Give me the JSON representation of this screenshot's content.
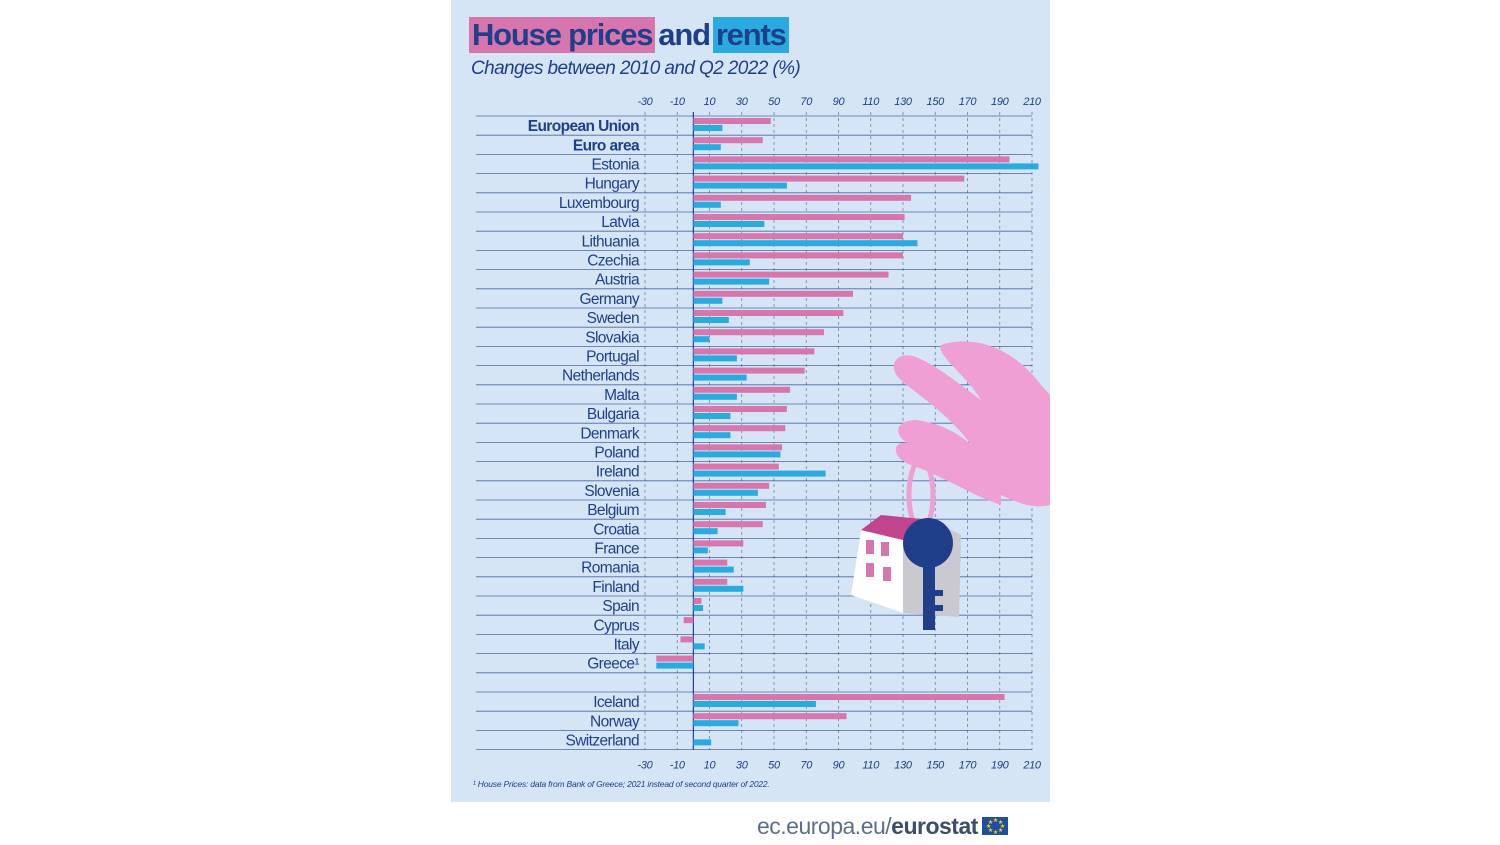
{
  "title": {
    "part1": "House prices",
    "part2": "and",
    "part3": "rents"
  },
  "subtitle": "Changes between 2010 and Q2 2022 (%)",
  "footnote": "¹ House Prices: data from Bank of Greece; 2021 instead of second quarter of 2022.",
  "footer": {
    "site": "ec.europa.eu/",
    "brand": "eurostat"
  },
  "colors": {
    "house_prices": "#d676ad",
    "rents": "#29abe2",
    "text": "#1f3f8b",
    "background": "#d5e5f5"
  },
  "chart_data": {
    "type": "bar",
    "orientation": "horizontal",
    "x_ticks": [
      -30,
      -10,
      10,
      30,
      50,
      70,
      90,
      110,
      130,
      150,
      170,
      190,
      210
    ],
    "xlim": [
      -30,
      210
    ],
    "grid": true,
    "categories": [
      "European Union",
      "Euro area",
      "Estonia",
      "Hungary",
      "Luxembourg",
      "Latvia",
      "Lithuania",
      "Czechia",
      "Austria",
      "Germany",
      "Sweden",
      "Slovakia",
      "Portugal",
      "Netherlands",
      "Malta",
      "Bulgaria",
      "Denmark",
      "Poland",
      "Ireland",
      "Slovenia",
      "Belgium",
      "Croatia",
      "France",
      "Romania",
      "Finland",
      "Spain",
      "Cyprus",
      "Italy",
      "Greece¹",
      "Iceland",
      "Norway",
      "Switzerland"
    ],
    "bold_categories": [
      "European Union",
      "Euro area"
    ],
    "series": [
      {
        "key": "house_prices",
        "values": [
          48,
          43,
          196,
          168,
          135,
          131,
          130,
          130,
          121,
          99,
          93,
          81,
          75,
          69,
          60,
          58,
          57,
          55,
          53,
          47,
          45,
          43,
          31,
          21,
          21,
          5,
          -6,
          -8,
          -23,
          193,
          95,
          null
        ]
      },
      {
        "key": "rents",
        "values": [
          18,
          17,
          214,
          58,
          17,
          44,
          139,
          35,
          47,
          18,
          22,
          10,
          27,
          33,
          27,
          23,
          23,
          54,
          82,
          40,
          20,
          15,
          9,
          25,
          31,
          6,
          null,
          7,
          -23,
          76,
          28,
          11
        ]
      }
    ]
  }
}
